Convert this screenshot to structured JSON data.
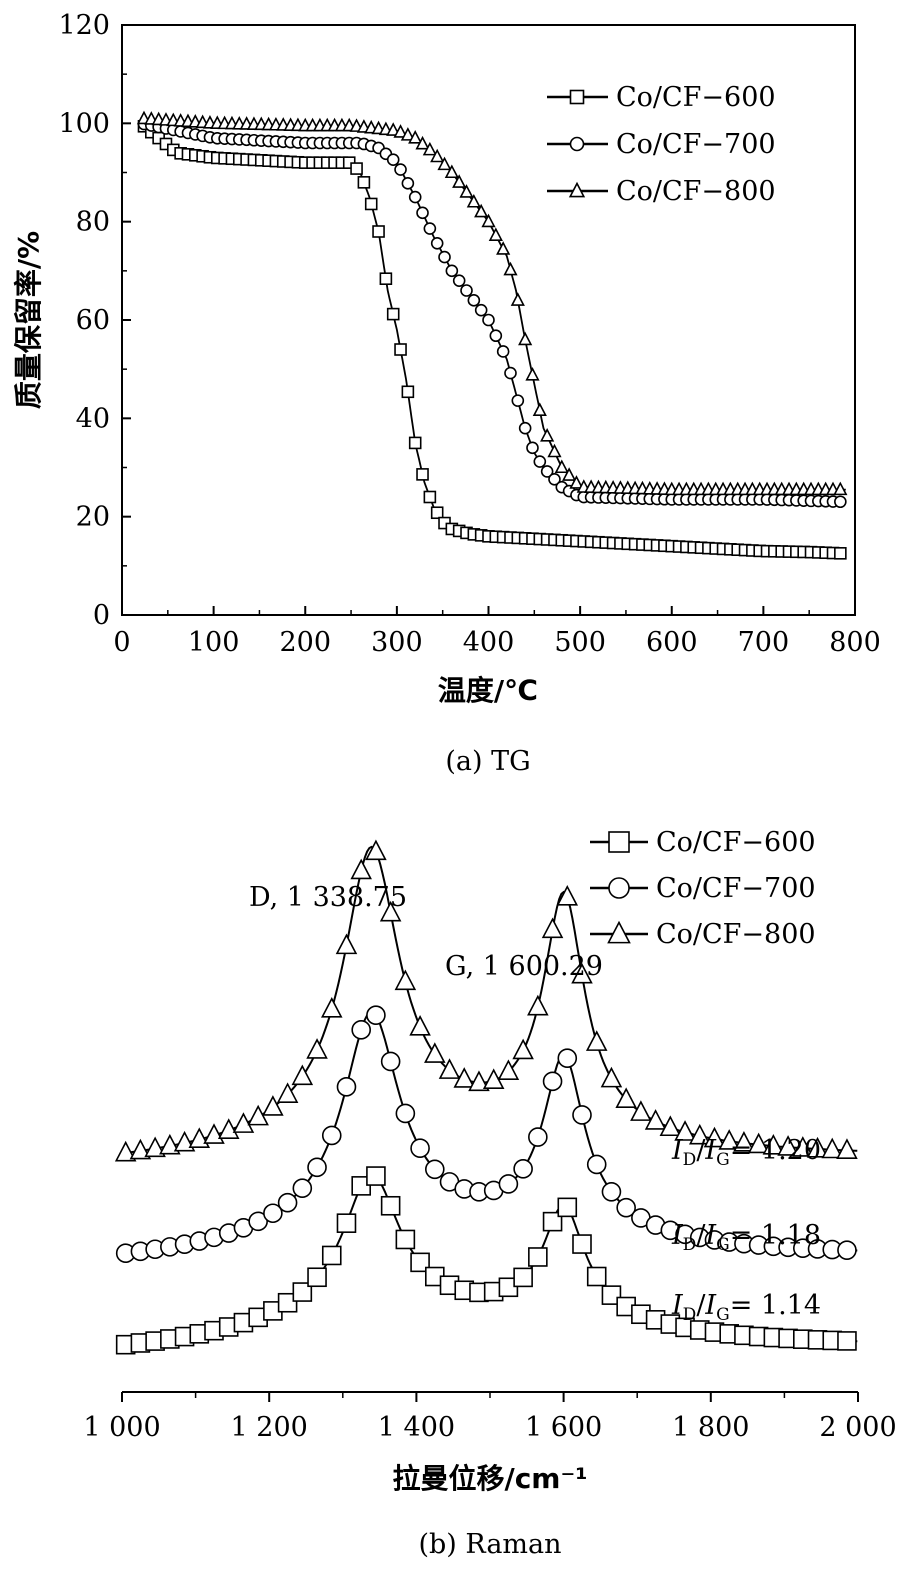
{
  "chart_data": [
    {
      "type": "line",
      "caption": "(a)  TG",
      "xlabel": "温度/℃",
      "ylabel": "质量保留率/%",
      "xlim": [
        0,
        800
      ],
      "ylim": [
        0,
        120
      ],
      "xticks": [
        "0",
        "100",
        "200",
        "300",
        "400",
        "500",
        "600",
        "700",
        "800"
      ],
      "yticks": [
        "0",
        "20",
        "40",
        "60",
        "80",
        "100",
        "120"
      ],
      "legend_position": "top-right",
      "series": [
        {
          "name": "Co/CF−600",
          "marker": "square",
          "x": [
            20,
            60,
            100,
            150,
            200,
            250,
            260,
            270,
            280,
            290,
            300,
            310,
            320,
            330,
            340,
            350,
            360,
            380,
            400,
            450,
            500,
            550,
            600,
            650,
            700,
            750,
            790
          ],
          "y": [
            100,
            94,
            93,
            92.5,
            92,
            92,
            90,
            85,
            78,
            66,
            58,
            48,
            35,
            27,
            22,
            19,
            17.5,
            16.5,
            16,
            15.5,
            15,
            14.5,
            14,
            13.5,
            13,
            12.8,
            12.5
          ]
        },
        {
          "name": "Co/CF−700",
          "marker": "circle",
          "x": [
            20,
            100,
            200,
            260,
            280,
            300,
            320,
            340,
            360,
            380,
            400,
            420,
            430,
            440,
            450,
            460,
            480,
            500,
            600,
            700,
            790
          ],
          "y": [
            100,
            97,
            96,
            96,
            95,
            92,
            85,
            77,
            70,
            65,
            60,
            52,
            45,
            38,
            33,
            30,
            26,
            24,
            23.5,
            23.5,
            23
          ]
        },
        {
          "name": "Co/CF−800",
          "marker": "triangle",
          "x": [
            20,
            100,
            200,
            250,
            300,
            320,
            340,
            360,
            380,
            400,
            420,
            430,
            440,
            450,
            460,
            480,
            500,
            600,
            700,
            790
          ],
          "y": [
            101,
            100,
            99.5,
            99.5,
            98.5,
            97,
            94,
            90,
            85,
            80,
            73,
            66,
            56,
            47,
            38,
            30,
            26,
            25.5,
            25.5,
            25.5
          ]
        }
      ]
    },
    {
      "type": "line",
      "caption": "(b)  Raman",
      "xlabel": "拉曼位移/cm⁻¹",
      "ylabel": "",
      "xlim": [
        1000,
        2000
      ],
      "xticks": [
        "1 000",
        "1 200",
        "1 400",
        "1 600",
        "1 800",
        "2 000"
      ],
      "legend_position": "top-right",
      "y_axis_unlabeled": true,
      "peaks": [
        {
          "label": "D, 1 338.75",
          "x": 1338.75
        },
        {
          "label": "G, 1 600.29",
          "x": 1600.29
        }
      ],
      "ratios": [
        {
          "text": "= 1.20",
          "series": "Co/CF−800"
        },
        {
          "text": "= 1.18",
          "series": "Co/CF−700"
        },
        {
          "text": "= 1.14",
          "series": "Co/CF−600"
        }
      ],
      "ratio_prefix": {
        "numerator": "I",
        "num_sub": "D",
        "denominator": "I",
        "den_sub": "G"
      },
      "series": [
        {
          "name": "Co/CF−600",
          "marker": "square",
          "baseline": 0.44,
          "d_height": 0.44,
          "g_height": 0.36,
          "valley": 0.21,
          "tail": 0.05
        },
        {
          "name": "Co/CF−700",
          "marker": "circle",
          "baseline": 0.61,
          "d_height": 0.66,
          "g_height": 0.54,
          "valley": 0.33,
          "tail": 0.18
        },
        {
          "name": "Co/CF−800",
          "marker": "triangle",
          "baseline": 1.0,
          "d_height": 0.86,
          "g_height": 0.73,
          "valley": 0.55,
          "tail": 0.4
        }
      ]
    }
  ]
}
